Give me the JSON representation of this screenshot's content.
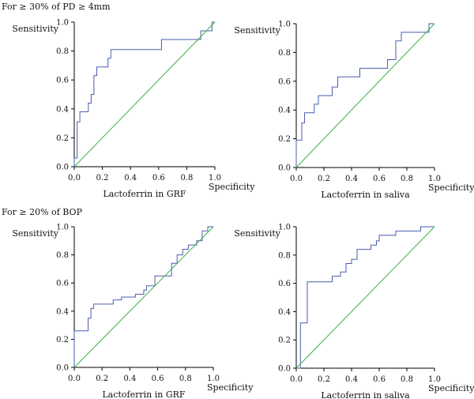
{
  "sections": [
    {
      "title": "For ≥ 30% of PD ≥ 4mm"
    },
    {
      "title": "For ≥ 20% of BOP"
    }
  ],
  "colors": {
    "roc": "#4a5db0",
    "reference": "#3cb043",
    "axis": "#000000"
  },
  "chart_data": [
    {
      "type": "line",
      "section": "For ≥ 30% of PD ≥ 4mm",
      "xlabel": "Lactoferrin in GRF",
      "x_axis_end_label": "Specificity",
      "ylabel": "Sensitivity",
      "xlim": [
        0,
        1
      ],
      "ylim": [
        0,
        1
      ],
      "xticks": [
        "0.0",
        "0.2",
        "0.4",
        "0.6",
        "0.8",
        "1.0"
      ],
      "yticks": [
        "0.0",
        "0.2",
        "0.4",
        "0.6",
        "0.8",
        "1.0"
      ],
      "series": [
        {
          "role": "roc",
          "points": [
            [
              0,
              0
            ],
            [
              0,
              0.06
            ],
            [
              0.02,
              0.06
            ],
            [
              0.02,
              0.31
            ],
            [
              0.04,
              0.31
            ],
            [
              0.04,
              0.38
            ],
            [
              0.1,
              0.38
            ],
            [
              0.1,
              0.44
            ],
            [
              0.12,
              0.44
            ],
            [
              0.12,
              0.5
            ],
            [
              0.14,
              0.5
            ],
            [
              0.14,
              0.63
            ],
            [
              0.16,
              0.63
            ],
            [
              0.16,
              0.69
            ],
            [
              0.24,
              0.69
            ],
            [
              0.24,
              0.75
            ],
            [
              0.26,
              0.75
            ],
            [
              0.26,
              0.81
            ],
            [
              0.62,
              0.81
            ],
            [
              0.62,
              0.88
            ],
            [
              0.9,
              0.88
            ],
            [
              0.9,
              0.94
            ],
            [
              0.98,
              0.94
            ],
            [
              0.98,
              1.0
            ],
            [
              1.0,
              1.0
            ]
          ]
        },
        {
          "role": "reference",
          "points": [
            [
              0,
              0
            ],
            [
              1,
              1
            ]
          ]
        }
      ]
    },
    {
      "type": "line",
      "section": "For ≥ 30% of PD ≥ 4mm",
      "xlabel": "Lactoferrin in saliva",
      "x_axis_end_label": "Specificity",
      "ylabel": "Sensitivity",
      "xlim": [
        0,
        1
      ],
      "ylim": [
        0,
        1
      ],
      "xticks": [
        "0.0",
        "0.2",
        "0.4",
        "0.6",
        "0.8",
        "1.0"
      ],
      "yticks": [
        "0.0",
        "0.2",
        "0.4",
        "0.6",
        "0.8",
        "1.0"
      ],
      "series": [
        {
          "role": "roc",
          "points": [
            [
              0,
              0
            ],
            [
              0,
              0.19
            ],
            [
              0.04,
              0.19
            ],
            [
              0.04,
              0.31
            ],
            [
              0.06,
              0.31
            ],
            [
              0.06,
              0.38
            ],
            [
              0.13,
              0.38
            ],
            [
              0.13,
              0.44
            ],
            [
              0.16,
              0.44
            ],
            [
              0.16,
              0.5
            ],
            [
              0.26,
              0.5
            ],
            [
              0.26,
              0.56
            ],
            [
              0.3,
              0.56
            ],
            [
              0.3,
              0.63
            ],
            [
              0.46,
              0.63
            ],
            [
              0.46,
              0.69
            ],
            [
              0.66,
              0.69
            ],
            [
              0.66,
              0.75
            ],
            [
              0.72,
              0.75
            ],
            [
              0.72,
              0.88
            ],
            [
              0.76,
              0.88
            ],
            [
              0.76,
              0.94
            ],
            [
              0.96,
              0.94
            ],
            [
              0.96,
              1.0
            ],
            [
              1.0,
              1.0
            ]
          ]
        },
        {
          "role": "reference",
          "points": [
            [
              0,
              0
            ],
            [
              1,
              1
            ]
          ]
        }
      ]
    },
    {
      "type": "line",
      "section": "For ≥ 20% of BOP",
      "xlabel": "Lactoferrin in GRF",
      "x_axis_end_label": "Specificity",
      "ylabel": "Sensitivity",
      "xlim": [
        0,
        1
      ],
      "ylim": [
        0,
        1
      ],
      "xticks": [
        "0.0",
        "0.2",
        "0.4",
        "0.6",
        "0.8",
        "1.0"
      ],
      "yticks": [
        "0.0",
        "0.2",
        "0.4",
        "0.6",
        "0.8",
        "1.0"
      ],
      "series": [
        {
          "role": "roc",
          "points": [
            [
              0,
              0
            ],
            [
              0,
              0.26
            ],
            [
              0.1,
              0.26
            ],
            [
              0.1,
              0.35
            ],
            [
              0.12,
              0.35
            ],
            [
              0.12,
              0.42
            ],
            [
              0.14,
              0.42
            ],
            [
              0.14,
              0.45
            ],
            [
              0.28,
              0.45
            ],
            [
              0.28,
              0.48
            ],
            [
              0.34,
              0.48
            ],
            [
              0.34,
              0.5
            ],
            [
              0.44,
              0.5
            ],
            [
              0.44,
              0.52
            ],
            [
              0.5,
              0.52
            ],
            [
              0.5,
              0.55
            ],
            [
              0.52,
              0.55
            ],
            [
              0.52,
              0.58
            ],
            [
              0.58,
              0.58
            ],
            [
              0.58,
              0.65
            ],
            [
              0.7,
              0.65
            ],
            [
              0.7,
              0.74
            ],
            [
              0.74,
              0.74
            ],
            [
              0.74,
              0.8
            ],
            [
              0.78,
              0.8
            ],
            [
              0.78,
              0.84
            ],
            [
              0.82,
              0.84
            ],
            [
              0.82,
              0.87
            ],
            [
              0.88,
              0.87
            ],
            [
              0.88,
              0.9
            ],
            [
              0.92,
              0.9
            ],
            [
              0.92,
              0.97
            ],
            [
              0.96,
              0.97
            ],
            [
              0.96,
              1.0
            ],
            [
              1.0,
              1.0
            ]
          ]
        },
        {
          "role": "reference",
          "points": [
            [
              0,
              0
            ],
            [
              1,
              1
            ]
          ]
        }
      ]
    },
    {
      "type": "line",
      "section": "For ≥ 20% of BOP",
      "xlabel": "Lactoferrin in saliva",
      "x_axis_end_label": "Specificity",
      "ylabel": "Sensitivity",
      "xlim": [
        0,
        1
      ],
      "ylim": [
        0,
        1
      ],
      "xticks": [
        "0.0",
        "0.2",
        "0.4",
        "0.6",
        "0.8",
        "1.0"
      ],
      "yticks": [
        "0.0",
        "0.2",
        "0.4",
        "0.6",
        "0.8",
        "1.0"
      ],
      "series": [
        {
          "role": "roc",
          "points": [
            [
              0,
              0
            ],
            [
              0.03,
              0
            ],
            [
              0.03,
              0.32
            ],
            [
              0.08,
              0.32
            ],
            [
              0.08,
              0.61
            ],
            [
              0.26,
              0.61
            ],
            [
              0.26,
              0.65
            ],
            [
              0.32,
              0.65
            ],
            [
              0.32,
              0.68
            ],
            [
              0.36,
              0.68
            ],
            [
              0.36,
              0.74
            ],
            [
              0.4,
              0.74
            ],
            [
              0.4,
              0.77
            ],
            [
              0.44,
              0.77
            ],
            [
              0.44,
              0.84
            ],
            [
              0.54,
              0.84
            ],
            [
              0.54,
              0.87
            ],
            [
              0.58,
              0.87
            ],
            [
              0.58,
              0.9
            ],
            [
              0.6,
              0.9
            ],
            [
              0.6,
              0.94
            ],
            [
              0.72,
              0.94
            ],
            [
              0.72,
              0.97
            ],
            [
              0.9,
              0.97
            ],
            [
              0.9,
              1.0
            ],
            [
              1.0,
              1.0
            ]
          ]
        },
        {
          "role": "reference",
          "points": [
            [
              0,
              0
            ],
            [
              1,
              1
            ]
          ]
        }
      ]
    }
  ]
}
